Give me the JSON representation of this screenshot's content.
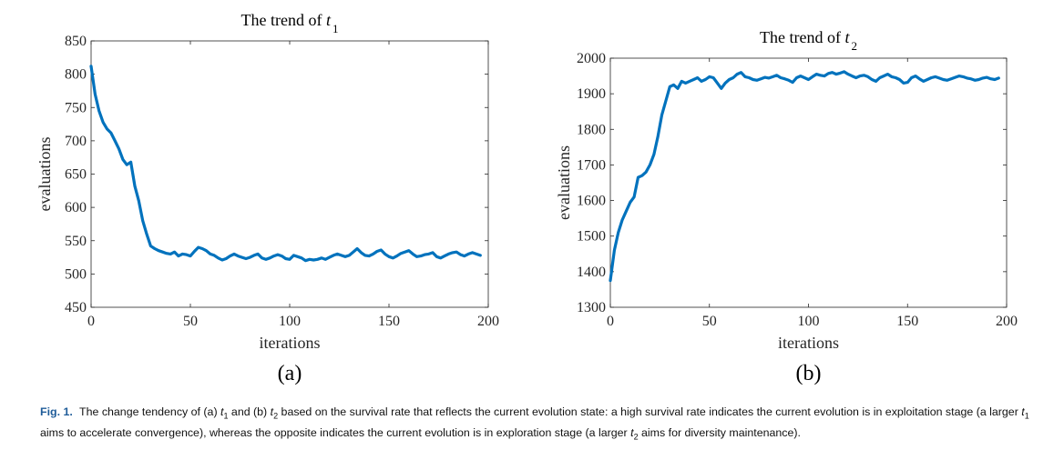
{
  "chart_data": [
    {
      "type": "line",
      "title_prefix": "The trend of ",
      "title_var": "t",
      "title_sub": "1",
      "xlabel": "iterations",
      "ylabel": "evaluations",
      "xlim": [
        0,
        200
      ],
      "ylim": [
        450,
        850
      ],
      "xticks": [
        0,
        50,
        100,
        150,
        200
      ],
      "yticks": [
        450,
        500,
        550,
        600,
        650,
        700,
        750,
        800,
        850
      ],
      "panel_label": "(a)",
      "grid": false,
      "line_color": "#0072BD",
      "series": [
        {
          "x": [
            0,
            2,
            4,
            6,
            8,
            10,
            12,
            14,
            16,
            18,
            20,
            22,
            24,
            26,
            28,
            30,
            32,
            34,
            36,
            38,
            40,
            42,
            44,
            46,
            48,
            50,
            52,
            54,
            56,
            58,
            60,
            62,
            64,
            66,
            68,
            70,
            72,
            74,
            76,
            78,
            80,
            82,
            84,
            86,
            88,
            90,
            92,
            94,
            96,
            98,
            100,
            102,
            104,
            106,
            108,
            110,
            112,
            114,
            116,
            118,
            120,
            122,
            124,
            126,
            128,
            130,
            132,
            134,
            136,
            138,
            140,
            142,
            144,
            146,
            148,
            150,
            152,
            154,
            156,
            158,
            160,
            162,
            164,
            166,
            168,
            170,
            172,
            174,
            176,
            178,
            180,
            182,
            184,
            186,
            188,
            190,
            192,
            194,
            196
          ],
          "y": [
            812,
            770,
            745,
            728,
            718,
            712,
            700,
            688,
            672,
            664,
            668,
            632,
            610,
            580,
            560,
            542,
            538,
            535,
            533,
            531,
            530,
            533,
            527,
            530,
            529,
            527,
            534,
            540,
            538,
            535,
            530,
            528,
            524,
            521,
            523,
            527,
            530,
            527,
            525,
            523,
            525,
            528,
            530,
            524,
            522,
            524,
            527,
            529,
            527,
            523,
            522,
            528,
            526,
            524,
            520,
            522,
            521,
            522,
            524,
            522,
            525,
            528,
            530,
            528,
            526,
            528,
            533,
            538,
            532,
            528,
            527,
            530,
            534,
            536,
            530,
            526,
            524,
            527,
            531,
            533,
            535,
            530,
            526,
            527,
            529,
            530,
            532,
            526,
            524,
            527,
            530,
            532,
            533,
            529,
            527,
            530,
            532,
            530,
            528
          ]
        }
      ]
    },
    {
      "type": "line",
      "title_prefix": "The trend of ",
      "title_var": "t",
      "title_sub": "2",
      "xlabel": "iterations",
      "ylabel": "evaluations",
      "xlim": [
        0,
        200
      ],
      "ylim": [
        1300,
        2000
      ],
      "xticks": [
        0,
        50,
        100,
        150,
        200
      ],
      "yticks": [
        1300,
        1400,
        1500,
        1600,
        1700,
        1800,
        1900,
        2000
      ],
      "panel_label": "(b)",
      "grid": false,
      "line_color": "#0072BD",
      "series": [
        {
          "x": [
            0,
            2,
            4,
            6,
            8,
            10,
            12,
            14,
            16,
            18,
            20,
            22,
            24,
            26,
            28,
            30,
            32,
            34,
            36,
            38,
            40,
            42,
            44,
            46,
            48,
            50,
            52,
            54,
            56,
            58,
            60,
            62,
            64,
            66,
            68,
            70,
            72,
            74,
            76,
            78,
            80,
            82,
            84,
            86,
            88,
            90,
            92,
            94,
            96,
            98,
            100,
            102,
            104,
            106,
            108,
            110,
            112,
            114,
            116,
            118,
            120,
            122,
            124,
            126,
            128,
            130,
            132,
            134,
            136,
            138,
            140,
            142,
            144,
            146,
            148,
            150,
            152,
            154,
            156,
            158,
            160,
            162,
            164,
            166,
            168,
            170,
            172,
            174,
            176,
            178,
            180,
            182,
            184,
            186,
            188,
            190,
            192,
            194,
            196
          ],
          "y": [
            1375,
            1460,
            1510,
            1545,
            1570,
            1595,
            1610,
            1665,
            1670,
            1680,
            1700,
            1730,
            1780,
            1840,
            1880,
            1920,
            1925,
            1915,
            1935,
            1930,
            1935,
            1940,
            1945,
            1935,
            1940,
            1948,
            1945,
            1930,
            1915,
            1930,
            1940,
            1945,
            1955,
            1960,
            1948,
            1945,
            1940,
            1938,
            1942,
            1946,
            1944,
            1948,
            1952,
            1945,
            1942,
            1938,
            1932,
            1945,
            1950,
            1945,
            1940,
            1948,
            1955,
            1952,
            1950,
            1957,
            1960,
            1955,
            1958,
            1962,
            1955,
            1950,
            1945,
            1950,
            1952,
            1948,
            1940,
            1935,
            1945,
            1950,
            1955,
            1948,
            1945,
            1940,
            1930,
            1932,
            1945,
            1950,
            1942,
            1935,
            1940,
            1945,
            1948,
            1944,
            1940,
            1938,
            1942,
            1946,
            1950,
            1948,
            1944,
            1942,
            1938,
            1940,
            1944,
            1946,
            1942,
            1940,
            1944
          ]
        }
      ]
    }
  ],
  "caption": {
    "fig_label": "Fig. 1.",
    "seg1": "The change tendency of (a) ",
    "t": "t",
    "sub1": "1",
    "seg2": " and (b) ",
    "sub2": "2",
    "seg3": " based on the survival rate that reflects the current evolution state: a high survival rate indicates the current evolution is in exploitation stage (a larger ",
    "seg4": " aims to accelerate convergence), whereas the opposite indicates the current evolution is in exploration stage (a larger ",
    "seg5": " aims for diversity maintenance)."
  }
}
